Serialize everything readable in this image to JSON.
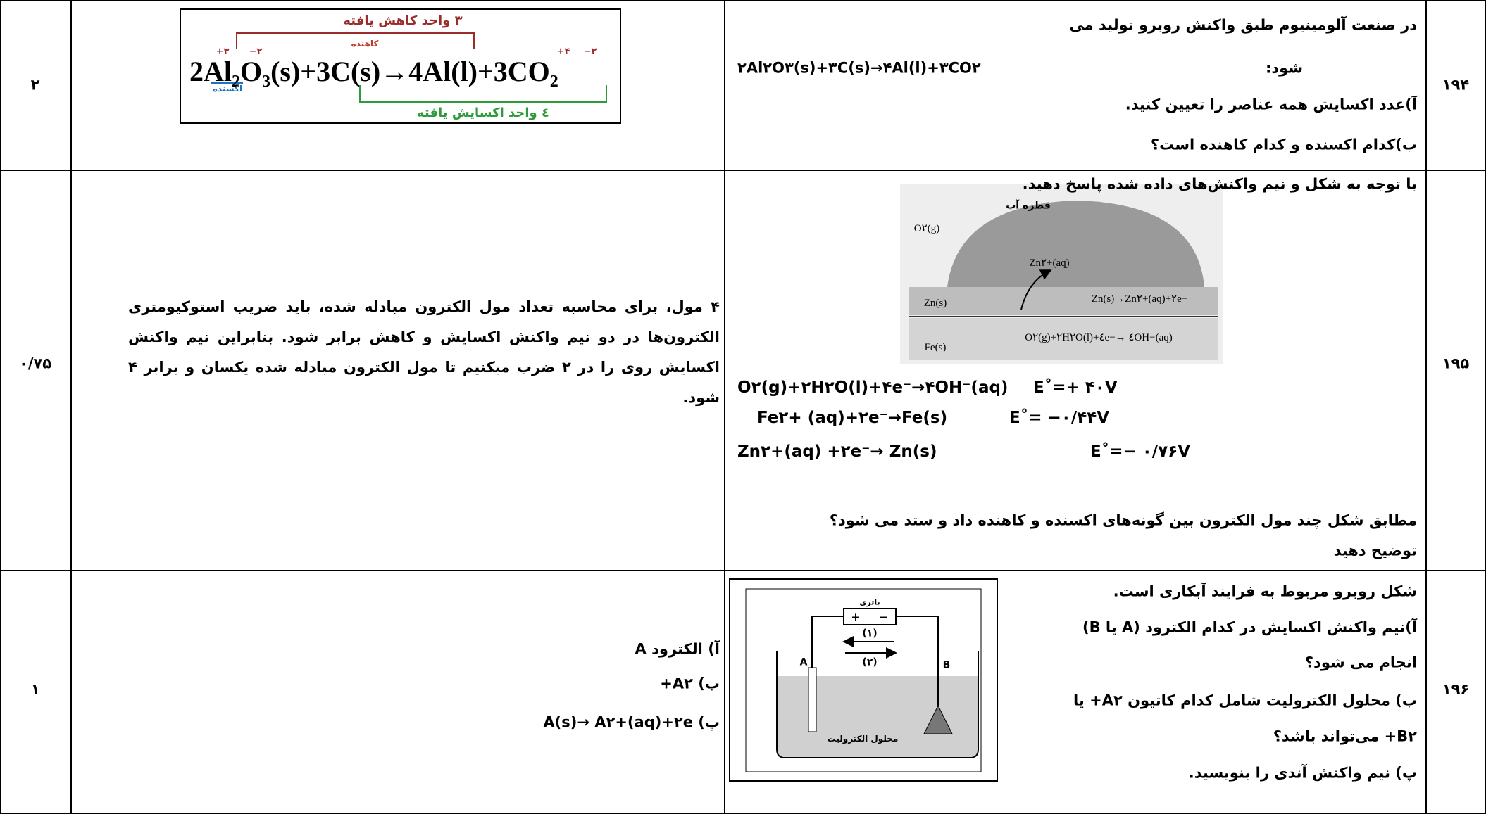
{
  "rows": [
    {
      "number": "۱۹۴",
      "score": "۲",
      "question": {
        "intro": "در صنعت آلومینیوم طبق واکنش روبرو تولید می",
        "intro_end": "شود:",
        "equation": "۲Al۲O۳(s)+۳C(s)→۴Al(l)+۳CO۲",
        "parts": [
          "آ)عدد اکسایش همه عناصر را تعیین کنید.",
          "ب)کدام اکسنده و کدام کاهنده است؟"
        ]
      },
      "answer": {
        "reduced_label": "۳ واحد کاهش یافته",
        "reducer_label": "کاهنده",
        "oxidizer_label": "اکسنده",
        "oxidized_label": "٤ واحد اکسایش یافته",
        "equation": "2Al₂O₃(s)+3C(s)→4Al(l)+3CO₂",
        "ox_numbers": [
          "+۳",
          "−۲",
          "+۴",
          "−۲"
        ]
      }
    },
    {
      "number": "۱۹۵",
      "score": "۰/۷۵",
      "question": {
        "intro": "با توجه به شکل و نیم واکنش‌های داده شده پاسخ دهید.",
        "figure": {
          "drop": "قطره آب",
          "oxygen": "O۲(g)",
          "zinc_ion": "Zn۲+(aq)",
          "zinc": "Zn(s)",
          "zinc_reaction": "Zn(s)→Zn۲+(aq)+۲e−",
          "iron": "Fe(s)",
          "oxygen_reaction": "O۲(g)+۲H۲O(l)+٤e−→ ٤OH−(aq)"
        },
        "reactions": [
          {
            "equation": "O۲(g)+۲H۲O(l)+۴e⁻→۴OH⁻(aq)",
            "potential": "E˚=+ ۴۰V"
          },
          {
            "equation": "Fe۲+ (aq)+۲e⁻→Fe(s)",
            "potential": "E˚= −۰/۴۴V"
          },
          {
            "equation": "Zn۲+(aq) +۲e⁻→ Zn(s)",
            "potential": "E˚=− ۰/۷۶V"
          }
        ],
        "parts": [
          "مطابق شکل چند مول الکترون بین گونه‌های اکسنده و کاهنده داد و ستد می شود؟",
          "توضیح دهید"
        ]
      },
      "answer": {
        "text": "۴ مول، برای محاسبه تعداد مول الکترون مبادله شده، باید ضریب استوکیومتری الکترون‌ها در دو نیم واکنش اکسایش و کاهش برابر شود. بنابراین نیم واکنش اکسایش روی را در ۲ ضرب میکنیم تا مول الکترون مبادله شده یکسان و برابر ۴ شود."
      }
    },
    {
      "number": "۱۹۶",
      "score": "۱",
      "question": {
        "parts": [
          "شکل روبرو مربوط به فرایند آبکاری است.",
          "آ)نیم واکنش اکسایش در کدام الکترود (A یا B)",
          "انجام می شود؟",
          "ب) محلول الکترولیت شامل کدام کاتیون A۲+ یا",
          "B۲+ می‌تواند باشد؟",
          "پ) نیم واکنش آندی را بنویسید."
        ],
        "figure": {
          "battery": "باتری",
          "plus": "+",
          "minus": "−",
          "arrow_1": "(۱)",
          "arrow_2": "(۲)",
          "electrode_a": "A",
          "electrode_b": "B",
          "electrolyte": "محلول الکترولیت"
        }
      },
      "answer": {
        "parts": [
          "آ) الکترود A",
          "ب) A۲+",
          "پ) A(s)→ A۲+(aq)+۲e"
        ]
      }
    }
  ]
}
